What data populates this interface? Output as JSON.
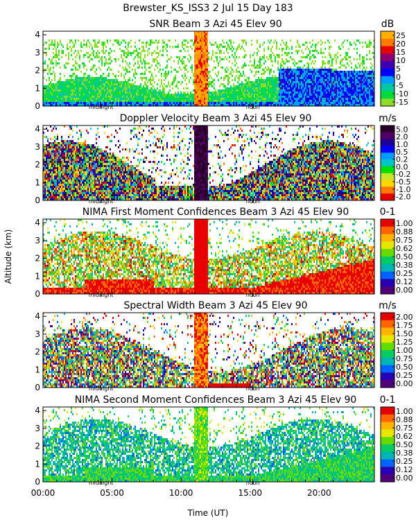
{
  "figure": {
    "title": "Brewster_KS_ISS3    2 Jul 15 Day 183",
    "xlabel": "Time (UT)",
    "ylabel": "Altitude (km)",
    "x_ticks": [
      "00:00",
      "05:00",
      "10:00",
      "15:00",
      "20:00"
    ],
    "markers": [
      "midnight",
      "noon"
    ],
    "y_ticks": [
      "0",
      "1",
      "2",
      "3",
      "4"
    ]
  },
  "chart_data": [
    {
      "type": "heatmap",
      "title": "SNR Beam 3 Azi  45 Elev 90",
      "unit": "dB",
      "xlim": [
        0,
        24
      ],
      "ylim": [
        0,
        4.2
      ],
      "colorbar_labels": [
        "25",
        "20",
        "15",
        "10",
        "5",
        "0",
        "-5",
        "-10",
        "-15"
      ],
      "colorbar_colors": [
        "#ffb000",
        "#ff7a00",
        "#e60000",
        "#8c0070",
        "#3c00b4",
        "#0000ff",
        "#009cff",
        "#00c8a0",
        "#00dc3c",
        "#8cdc28"
      ]
    },
    {
      "type": "heatmap",
      "title": "Doppler Velocity Beam 3 Azi  45 Elev 90",
      "unit": "m/s",
      "xlim": [
        0,
        24
      ],
      "ylim": [
        0,
        4.2
      ],
      "colorbar_labels": [
        "5.0",
        "2.0",
        "1.0",
        "0.5",
        "0.2",
        "0.0",
        "-0.2",
        "-0.5",
        "-1.0",
        "-2.0"
      ],
      "colorbar_colors": [
        "#280028",
        "#500064",
        "#1e0096",
        "#0000ff",
        "#009cff",
        "#00c8c8",
        "#00e100",
        "#c8e628",
        "#ffd700",
        "#ff7800",
        "#e60000"
      ]
    },
    {
      "type": "heatmap",
      "title": "NIMA First Moment Confidences Beam 3 Azi  45 Elev 90",
      "unit": "0-1",
      "xlim": [
        0,
        24
      ],
      "ylim": [
        0,
        4.2
      ],
      "colorbar_labels": [
        "1.00",
        "0.88",
        "0.75",
        "0.62",
        "0.50",
        "0.38",
        "0.25",
        "0.12",
        "0.00"
      ],
      "colorbar_colors": [
        "#e60000",
        "#ff6400",
        "#ffb400",
        "#e6e600",
        "#64dc00",
        "#00cc66",
        "#00b4b4",
        "#0064ff",
        "#2800b4",
        "#500078"
      ]
    },
    {
      "type": "heatmap",
      "title": "Spectral Width Beam 3 Azi  45 Elev 90",
      "unit": "m/s",
      "xlim": [
        0,
        24
      ],
      "ylim": [
        0,
        4.2
      ],
      "colorbar_labels": [
        "2.00",
        "1.75",
        "1.50",
        "1.25",
        "1.00",
        "0.75",
        "0.50",
        "0.25",
        "0.00"
      ],
      "colorbar_colors": [
        "#e60000",
        "#ff6400",
        "#ffb400",
        "#e6e600",
        "#64dc00",
        "#00cc66",
        "#00b4b4",
        "#0064ff",
        "#2800b4",
        "#500078"
      ]
    },
    {
      "type": "heatmap",
      "title": "NIMA Second Moment Confidences Beam 3 Azi  45 Elev 90",
      "unit": "0-1",
      "xlim": [
        0,
        24
      ],
      "ylim": [
        0,
        4.2
      ],
      "colorbar_labels": [
        "1.00",
        "0.88",
        "0.75",
        "0.62",
        "0.50",
        "0.38",
        "0.25",
        "0.12",
        "0.00"
      ],
      "colorbar_colors": [
        "#e60000",
        "#ff6400",
        "#ffb400",
        "#e6e600",
        "#64dc00",
        "#00cc66",
        "#00b4b4",
        "#0064ff",
        "#2800b4",
        "#500078"
      ]
    }
  ]
}
